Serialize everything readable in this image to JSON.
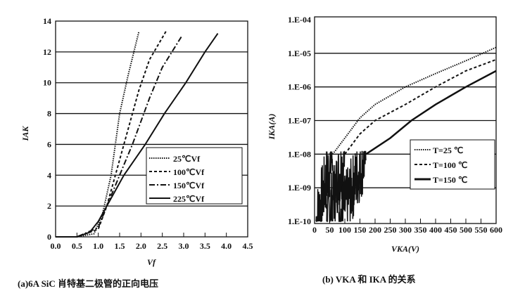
{
  "chart_data": [
    {
      "type": "line",
      "title": "",
      "xlabel": "Vf",
      "ylabel": "IAK",
      "xlim": [
        0,
        4.5
      ],
      "ylim": [
        0,
        14
      ],
      "xticks": [
        "0.0",
        "0.5",
        "1.0",
        "1.5",
        "2.0",
        "2.5",
        "3.0",
        "3.5",
        "4.0",
        "4.5"
      ],
      "yticks": [
        "0",
        "2",
        "4",
        "6",
        "8",
        "10",
        "12",
        "14"
      ],
      "grid": "horizontal",
      "legend": "right-middle",
      "caption": "(a)6A SiC 肖特基二极管的正向电压",
      "series": [
        {
          "name": "25℃Vf",
          "style": "dotted",
          "x": [
            0,
            0.5,
            0.9,
            1.1,
            1.3,
            1.5,
            1.7,
            1.95
          ],
          "y": [
            0,
            0,
            0.2,
            1.5,
            4,
            8,
            10.5,
            13.3
          ]
        },
        {
          "name": "100℃Vf",
          "style": "dashed",
          "x": [
            0,
            0.5,
            1.0,
            1.2,
            1.4,
            1.65,
            1.95,
            2.2,
            2.6
          ],
          "y": [
            0,
            0,
            0.5,
            2,
            4,
            6.5,
            9.5,
            11.5,
            13.4
          ]
        },
        {
          "name": "150℃Vf",
          "style": "dashdot",
          "x": [
            0,
            0.5,
            1.0,
            1.2,
            1.5,
            1.8,
            2.2,
            2.5,
            2.95
          ],
          "y": [
            0,
            0,
            0.6,
            2,
            4,
            6,
            9,
            11,
            13
          ]
        },
        {
          "name": "225℃Vf",
          "style": "solid",
          "x": [
            0,
            0.5,
            0.8,
            1.0,
            1.2,
            1.6,
            2.1,
            2.55,
            3.05,
            3.5,
            3.8
          ],
          "y": [
            0,
            0,
            0.3,
            1,
            2,
            4,
            6,
            8,
            10,
            12,
            13.2
          ]
        }
      ]
    },
    {
      "type": "line",
      "title": "",
      "xlabel": "VKA(V)",
      "ylabel": "IKA(A)",
      "xlim": [
        0,
        600
      ],
      "ylim": [
        1e-10,
        0.0001
      ],
      "yscale": "log",
      "xticks": [
        "0",
        "50",
        "100",
        "150",
        "200",
        "250",
        "300",
        "350",
        "400",
        "450",
        "500",
        "550",
        "600"
      ],
      "yticks": [
        "1.E-10",
        "1.E-09",
        "1.E-08",
        "1.E-07",
        "1.E-06",
        "1.E-05",
        "1.E-04"
      ],
      "grid": "horizontal",
      "legend": "right-middle",
      "caption": "(b) VKA 和 IKA 的关系",
      "series": [
        {
          "name": "T=25 ℃",
          "style": "dotted",
          "x": [
            5,
            30,
            50,
            60,
            100,
            150,
            200,
            300,
            400,
            500,
            600
          ],
          "y": [
            1e-10,
            5e-10,
            3e-09,
            1e-08,
            3e-08,
            1.2e-07,
            3e-07,
            1e-06,
            2.5e-06,
            6e-06,
            1.5e-05
          ]
        },
        {
          "name": "T=100 ℃",
          "style": "dashed",
          "x": [
            40,
            70,
            90,
            100,
            150,
            200,
            300,
            400,
            500,
            600
          ],
          "y": [
            1e-10,
            1e-09,
            5e-09,
            1e-08,
            4e-08,
            1e-07,
            3e-07,
            1e-06,
            3e-06,
            6.5e-06
          ]
        },
        {
          "name": "T=150 ℃",
          "style": "solid",
          "x": [
            80,
            110,
            140,
            170,
            250,
            320,
            400,
            500,
            600
          ],
          "y": [
            1e-10,
            1e-09,
            4e-09,
            1e-08,
            3e-08,
            1e-07,
            3e-07,
            1e-06,
            3e-06
          ]
        }
      ]
    }
  ]
}
